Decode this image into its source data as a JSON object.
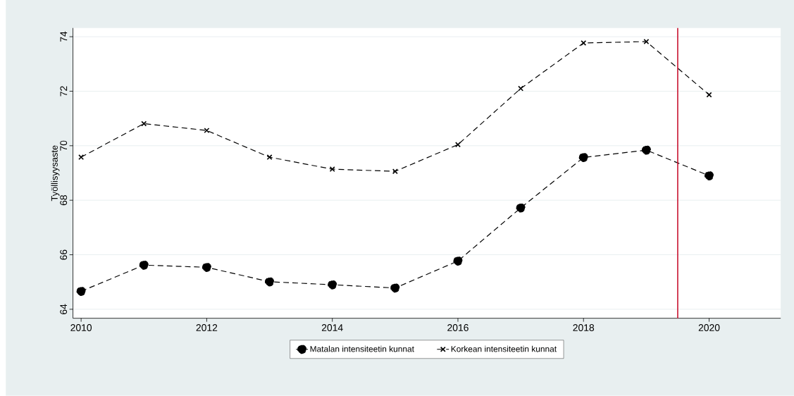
{
  "chart_data": {
    "type": "line",
    "ylabel": "Työllisyysaste",
    "x": [
      2010,
      2011,
      2012,
      2013,
      2014,
      2015,
      2016,
      2017,
      2018,
      2019,
      2020
    ],
    "series": [
      {
        "name": "Matalan intensiteetin kunnat",
        "color": "#000000",
        "marker": "circle",
        "values": [
          64.66,
          65.62,
          65.54,
          65.01,
          64.9,
          64.78,
          65.77,
          67.72,
          69.57,
          69.84,
          68.9
        ]
      },
      {
        "name": "Korkean intensiteetin kunnat",
        "color": "#000000",
        "marker": "cross",
        "values": [
          69.58,
          70.81,
          70.56,
          69.58,
          69.14,
          69.06,
          70.04,
          72.1,
          73.77,
          73.82,
          71.87
        ]
      }
    ],
    "line_style": "dashed",
    "xlim": [
      2009.87,
      2021.14
    ],
    "ylim": [
      63.67,
      74.32
    ],
    "xticks": [
      2010,
      2012,
      2014,
      2016,
      2018,
      2020
    ],
    "yticks": [
      64,
      66,
      68,
      70,
      72,
      74
    ],
    "grid": "y",
    "legend": "bottom",
    "ref_lines": [
      {
        "axis": "x",
        "value": 2019.5,
        "color": "#c8102e"
      }
    ]
  }
}
